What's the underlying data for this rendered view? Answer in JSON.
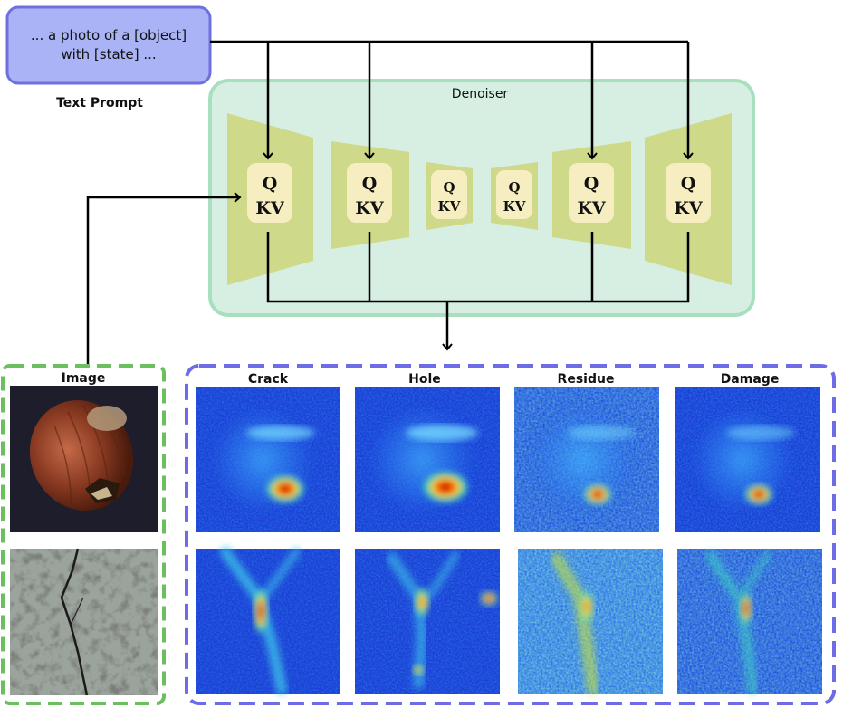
{
  "text_prompt": {
    "line1": "... a photo of a [object]",
    "line2": "with [state] ...",
    "caption": "Text Prompt"
  },
  "denoiser": {
    "label": "Denoiser",
    "blocks": [
      {
        "q": "Q",
        "kv": "KV"
      },
      {
        "q": "Q",
        "kv": "KV"
      },
      {
        "q": "Q",
        "kv": "KV"
      },
      {
        "q": "Q",
        "kv": "KV"
      },
      {
        "q": "Q",
        "kv": "KV"
      },
      {
        "q": "Q",
        "kv": "KV"
      }
    ]
  },
  "image_panel": {
    "title": "Image",
    "images": [
      "hazelnut",
      "cracked-stone"
    ]
  },
  "heatmap_panel": {
    "columns": [
      "Crack",
      "Hole",
      "Residue",
      "Damage"
    ]
  },
  "colors": {
    "prompt_fill": "#a9b3f5",
    "prompt_stroke": "#6f6fe0",
    "denoiser_fill": "#d6efe2",
    "denoiser_stroke": "#a7dfbf",
    "block_fill": "#cfd98a",
    "qkv_fill": "#f6edc0",
    "image_frame": "#6bbf5f",
    "heatmap_frame": "#6e6be6",
    "heatmap_bg": "#1c3fd6"
  }
}
